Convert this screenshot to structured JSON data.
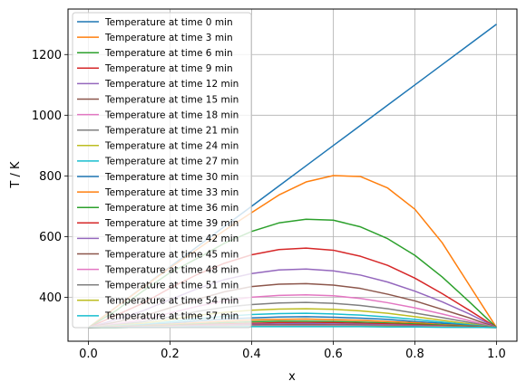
{
  "chart_data": {
    "type": "line",
    "title": "",
    "xlabel": "x",
    "ylabel": "T / K",
    "xlim": [
      -0.05,
      1.05
    ],
    "ylim": [
      255,
      1350
    ],
    "xticks": [
      0.0,
      0.2,
      0.4,
      0.6,
      0.8,
      1.0
    ],
    "xtick_labels": [
      "0.0",
      "0.2",
      "0.4",
      "0.6",
      "0.8",
      "1.0"
    ],
    "yticks": [
      400,
      600,
      800,
      1000,
      1200
    ],
    "ytick_labels": [
      "400",
      "600",
      "800",
      "1000",
      "1200"
    ],
    "grid": true,
    "legend_position": "upper-left",
    "x": [
      0.0,
      0.0667,
      0.1333,
      0.2,
      0.2667,
      0.3333,
      0.4,
      0.4667,
      0.5333,
      0.6,
      0.6667,
      0.7333,
      0.8,
      0.8667,
      0.9333,
      1.0
    ],
    "series": [
      {
        "name": "Temperature at time 0 min",
        "color": "#1f77b4",
        "values": [
          300,
          366.7,
          433.3,
          500,
          566.7,
          633.3,
          700,
          766.7,
          833.3,
          900,
          966.7,
          1033.3,
          1100,
          1166.7,
          1233.3,
          1300
        ]
      },
      {
        "name": "Temperature at time 3 min",
        "color": "#ff7f0e",
        "values": [
          300,
          366,
          432,
          497,
          558,
          620,
          679,
          737,
          780,
          801,
          798,
          760,
          690,
          580,
          440,
          300
        ]
      },
      {
        "name": "Temperature at time 6 min",
        "color": "#2ca02c",
        "values": [
          300,
          355,
          420,
          481,
          528,
          578,
          617,
          645,
          657,
          654,
          632,
          593,
          538,
          467,
          385,
          300
        ]
      },
      {
        "name": "Temperature at time 9 min",
        "color": "#d62728",
        "values": [
          300,
          340,
          380,
          430,
          475,
          512,
          540,
          557,
          562,
          555,
          535,
          505,
          463,
          412,
          357,
          300
        ]
      },
      {
        "name": "Temperature at time 12 min",
        "color": "#9467bd",
        "values": [
          300,
          326,
          355,
          392,
          428,
          458,
          478,
          490,
          493,
          487,
          473,
          450,
          420,
          385,
          345,
          300
        ]
      },
      {
        "name": "Temperature at time 15 min",
        "color": "#8c564b",
        "values": [
          300,
          318,
          337,
          365,
          393,
          418,
          435,
          443,
          445,
          440,
          429,
          410,
          388,
          360,
          332,
          300
        ]
      },
      {
        "name": "Temperature at time 18 min",
        "color": "#e377c2",
        "values": [
          300,
          312,
          326,
          348,
          370,
          388,
          400,
          406,
          408,
          405,
          396,
          382,
          365,
          345,
          323,
          300
        ]
      },
      {
        "name": "Temperature at time 21 min",
        "color": "#7f7f7f",
        "values": [
          300,
          309,
          319,
          335,
          353,
          367,
          376,
          381,
          383,
          380,
          373,
          362,
          348,
          333,
          317,
          300
        ]
      },
      {
        "name": "Temperature at time 24 min",
        "color": "#bcbd22",
        "values": [
          300,
          307,
          314,
          326,
          340,
          350,
          357,
          361,
          362,
          360,
          355,
          347,
          336,
          324,
          312,
          300
        ]
      },
      {
        "name": "Temperature at time 27 min",
        "color": "#17becf",
        "values": [
          300,
          305,
          310,
          319,
          329,
          337,
          343,
          346,
          347,
          345,
          341,
          335,
          327,
          318,
          309,
          300
        ]
      },
      {
        "name": "Temperature at time 30 min",
        "color": "#1f77b4",
        "values": [
          300,
          304,
          308,
          314,
          322,
          328,
          332,
          335,
          336,
          334,
          331,
          327,
          320,
          314,
          307,
          300
        ]
      },
      {
        "name": "Temperature at time 33 min",
        "color": "#ff7f0e",
        "values": [
          300,
          303,
          306,
          311,
          316,
          321,
          325,
          327,
          328,
          326,
          324,
          320,
          316,
          310,
          305,
          300
        ]
      },
      {
        "name": "Temperature at time 36 min",
        "color": "#2ca02c",
        "values": [
          300,
          302,
          305,
          308,
          312,
          316,
          319,
          321,
          321,
          320,
          318,
          315,
          312,
          308,
          304,
          300
        ]
      },
      {
        "name": "Temperature at time 39 min",
        "color": "#d62728",
        "values": [
          300,
          302,
          304,
          306,
          309,
          312,
          314,
          316,
          316,
          316,
          314,
          312,
          309,
          306,
          303,
          300
        ]
      },
      {
        "name": "Temperature at time 42 min",
        "color": "#9467bd",
        "values": [
          300,
          301,
          303,
          305,
          307,
          309,
          311,
          312,
          313,
          312,
          311,
          309,
          307,
          305,
          302,
          300
        ]
      },
      {
        "name": "Temperature at time 45 min",
        "color": "#8c564b",
        "values": [
          300,
          301,
          302,
          304,
          305,
          307,
          308,
          309,
          310,
          309,
          308,
          307,
          305,
          304,
          302,
          300
        ]
      },
      {
        "name": "Temperature at time 48 min",
        "color": "#e377c2",
        "values": [
          300,
          301,
          302,
          303,
          304,
          305,
          306,
          307,
          307,
          307,
          306,
          305,
          304,
          303,
          301,
          300
        ]
      },
      {
        "name": "Temperature at time 51 min",
        "color": "#7f7f7f",
        "values": [
          300,
          301,
          301,
          302,
          303,
          304,
          305,
          305,
          305,
          305,
          305,
          304,
          303,
          302,
          301,
          300
        ]
      },
      {
        "name": "Temperature at time 54 min",
        "color": "#bcbd22",
        "values": [
          300,
          300,
          301,
          302,
          302,
          303,
          304,
          304,
          304,
          304,
          304,
          303,
          302,
          302,
          301,
          300
        ]
      },
      {
        "name": "Temperature at time 57 min",
        "color": "#17becf",
        "values": [
          300,
          300,
          301,
          301,
          302,
          302,
          303,
          303,
          303,
          303,
          303,
          302,
          302,
          301,
          301,
          300
        ]
      }
    ]
  }
}
